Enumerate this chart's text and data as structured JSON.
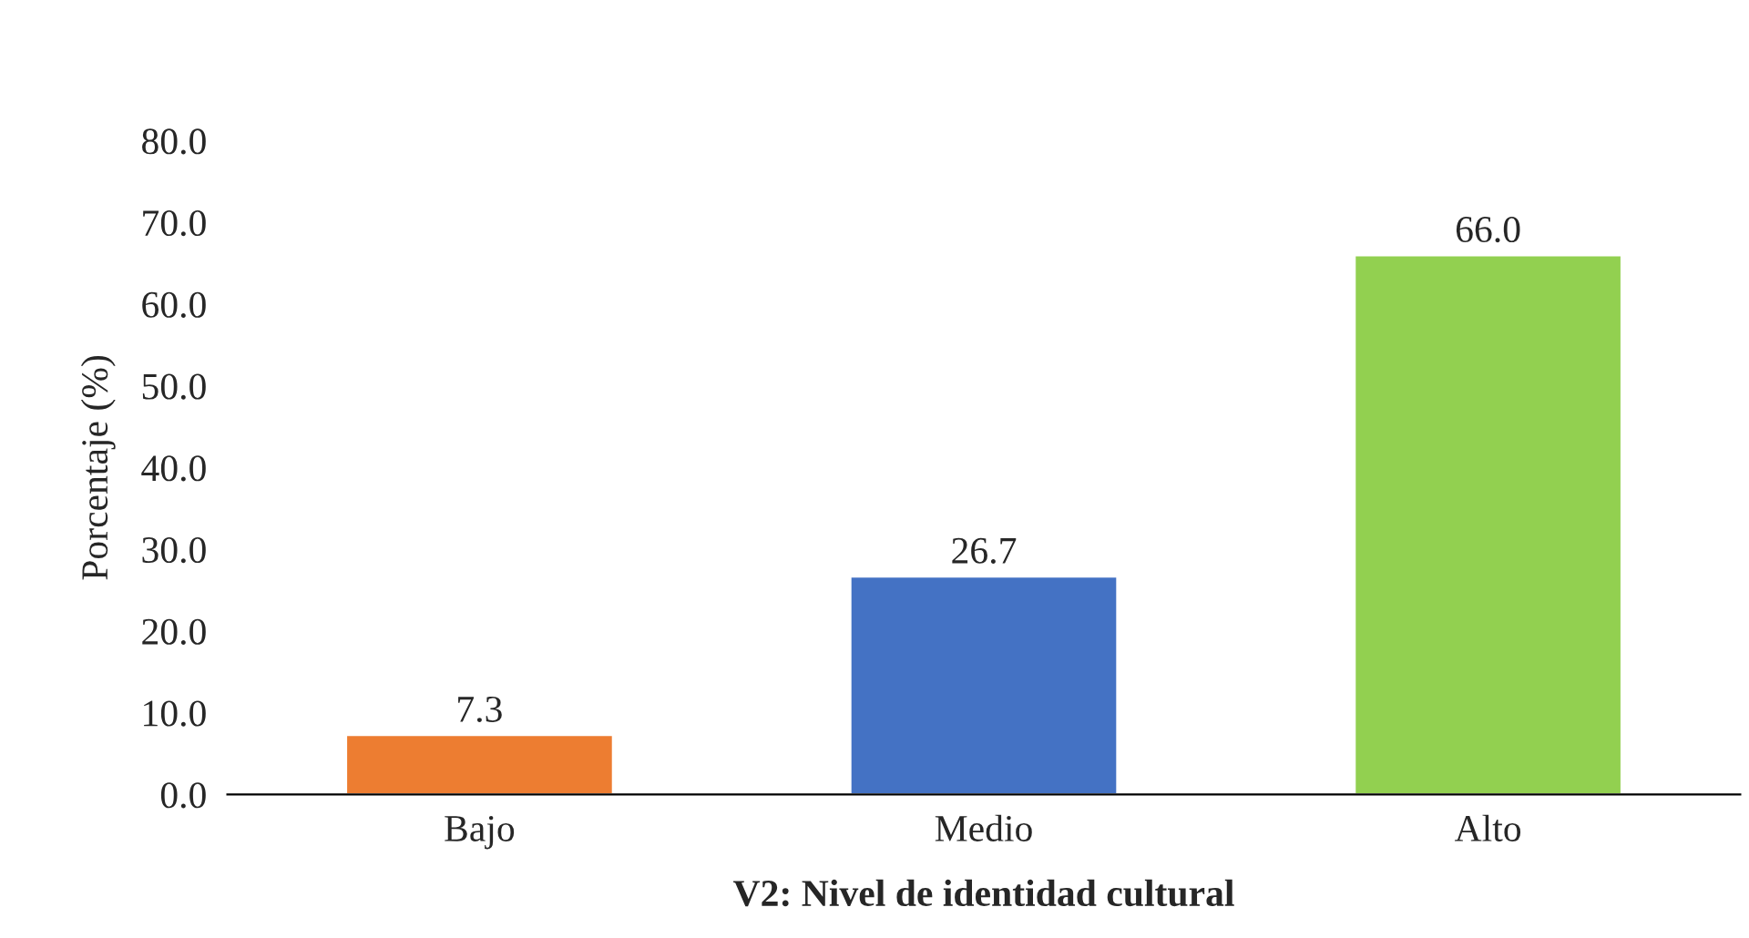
{
  "chart_data": {
    "type": "bar",
    "categories": [
      "Bajo",
      "Medio",
      "Alto"
    ],
    "values": [
      7.3,
      26.7,
      66.0
    ],
    "colors": [
      "#ed7d31",
      "#4472c4",
      "#92d050"
    ],
    "value_labels": [
      "7.3",
      "26.7",
      "66.0"
    ],
    "xlabel": "V2: Nivel de identidad cultural",
    "ylabel": "Porcentaje (%)",
    "ylim": [
      0,
      80
    ],
    "yticks": [
      {
        "value": 0,
        "label": "0.0"
      },
      {
        "value": 10,
        "label": "10.0"
      },
      {
        "value": 20,
        "label": "20.0"
      },
      {
        "value": 30,
        "label": "30.0"
      },
      {
        "value": 40,
        "label": "40.0"
      },
      {
        "value": 50,
        "label": "50.0"
      },
      {
        "value": 60,
        "label": "60.0"
      },
      {
        "value": 70,
        "label": "70.0"
      },
      {
        "value": 80,
        "label": "80.0"
      }
    ],
    "grid": false,
    "legend": false
  }
}
